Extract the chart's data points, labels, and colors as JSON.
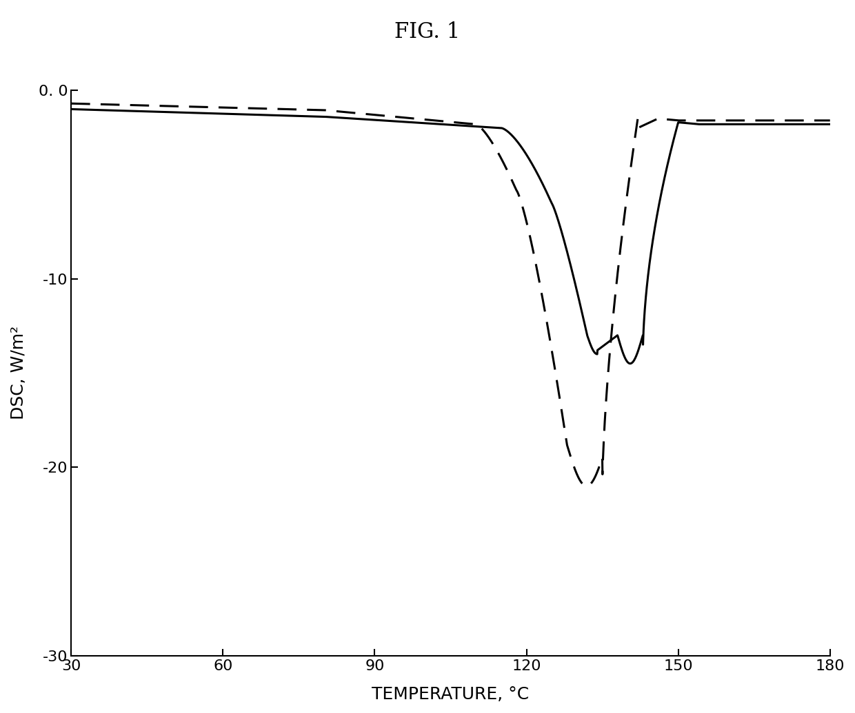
{
  "title": "FIG. 1",
  "xlabel": "TEMPERATURE, °C",
  "ylabel": "DSC, W/m²",
  "xlim": [
    30,
    180
  ],
  "ylim": [
    -30,
    0
  ],
  "xticks": [
    30,
    60,
    90,
    120,
    150,
    180
  ],
  "yticks": [
    0,
    -10,
    -20,
    -30
  ],
  "ytick_labels": [
    "0. 0",
    "-10",
    "-20",
    "-30"
  ],
  "background_color": "#ffffff",
  "line_color": "#000000",
  "title_fontsize": 22,
  "axis_label_fontsize": 18,
  "tick_fontsize": 16
}
